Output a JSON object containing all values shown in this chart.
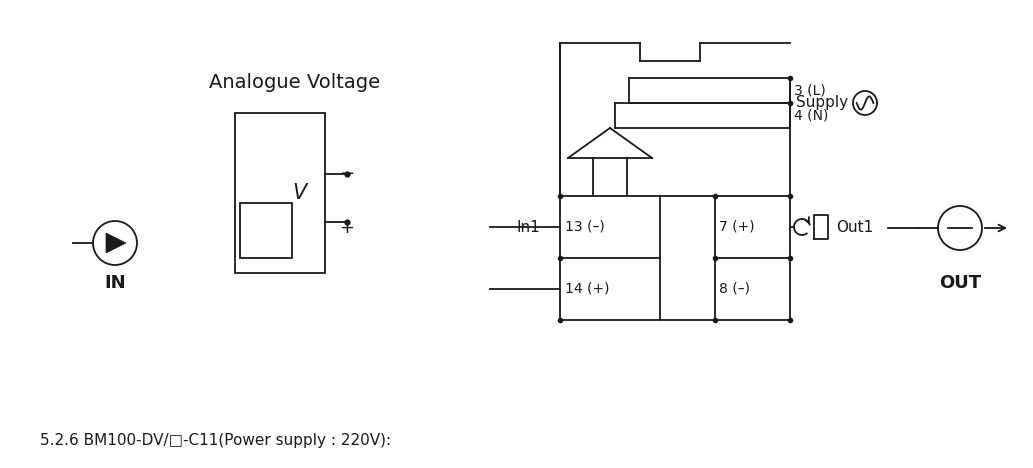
{
  "title": "5.2.6 BM100-DV/□-C11(Power supply : 220V):",
  "bg_color": "#ffffff",
  "line_color": "#1a1a1a",
  "text_color": "#1a1a1a",
  "title_fontsize": 11,
  "label_fontsize": 11,
  "in_label": "IN",
  "out_label": "OUT",
  "in1_label": "In1",
  "out1_label": "Out1",
  "supply_label": "Supply",
  "analogue_label": "Analogue Voltage"
}
